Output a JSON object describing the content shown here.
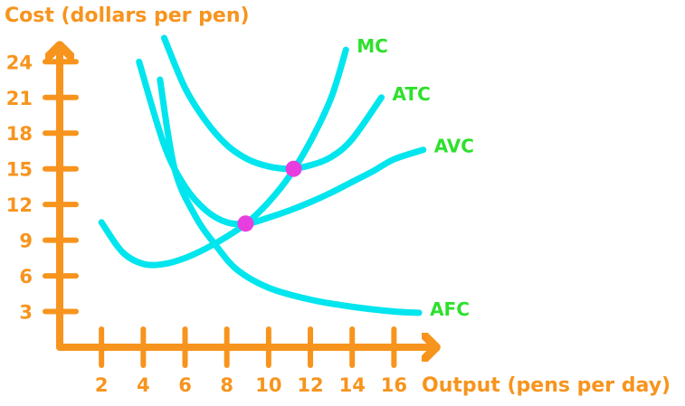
{
  "chart_data": {
    "type": "line",
    "title": "",
    "xlabel": "Output (pens per day)",
    "ylabel": "Cost (dollars per pen)",
    "xticks": [
      2,
      4,
      6,
      8,
      10,
      12,
      14,
      16
    ],
    "yticks": [
      3,
      6,
      9,
      12,
      15,
      18,
      21,
      24
    ],
    "xlim": [
      0,
      17.5
    ],
    "ylim": [
      0,
      26
    ],
    "grid": false,
    "legend": "none",
    "colors": {
      "axis": "#f7941d",
      "curve": "#00e5ee",
      "label": "#2ee02e",
      "point": "#e83ee0"
    },
    "series": [
      {
        "name": "MC",
        "x": [
          2,
          3,
          4,
          5,
          6,
          7,
          8,
          9,
          10,
          11,
          12,
          13,
          13.7
        ],
        "y": [
          10.5,
          8,
          7,
          7,
          7.5,
          8.3,
          9.3,
          10.5,
          12.2,
          14.4,
          17.3,
          21,
          25
        ]
      },
      {
        "name": "ATC",
        "x": [
          5,
          6,
          7,
          8,
          9,
          10,
          11,
          12,
          13,
          14,
          15.4
        ],
        "y": [
          26,
          21.8,
          19,
          17,
          15.8,
          15.2,
          15,
          15.3,
          16,
          17.5,
          21
        ]
      },
      {
        "name": "AVC",
        "x": [
          3.8,
          5,
          6,
          7,
          8,
          9,
          10,
          11,
          12,
          13,
          14,
          15,
          16,
          17.4
        ],
        "y": [
          24,
          17,
          13.5,
          11.5,
          10.5,
          10.4,
          10.9,
          11.5,
          12.2,
          13,
          13.9,
          14.8,
          15.8,
          16.6
        ]
      },
      {
        "name": "AFC",
        "x": [
          4.8,
          5.5,
          6.5,
          7.5,
          8.5,
          10,
          12,
          14,
          16,
          17.2
        ],
        "y": [
          22.5,
          15,
          11,
          8.5,
          6.5,
          5,
          4,
          3.4,
          3,
          2.9
        ]
      }
    ],
    "points": [
      {
        "x": 8.9,
        "y": 10.4
      },
      {
        "x": 11.2,
        "y": 15
      }
    ]
  }
}
